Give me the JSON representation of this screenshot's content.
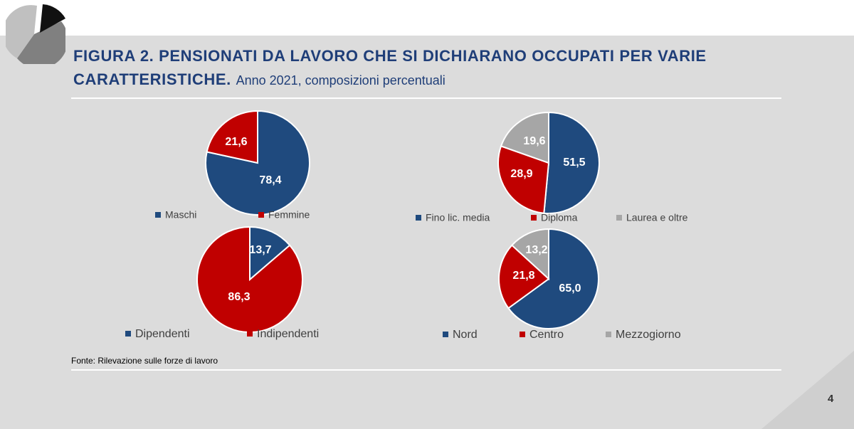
{
  "header": {
    "title_bold": "FIGURA 2. PENSIONATI DA LAVORO CHE SI DICHIARANO OCCUPATI PER VARIE",
    "title_bold_2": "CARATTERISTICHE.",
    "subtitle": "Anno 2021, composizioni percentuali"
  },
  "source": "Fonte: Rilevazione sulle forze di lavoro",
  "page_number": "4",
  "colors": {
    "blue": "#1f4a7e",
    "red": "#c00000",
    "grey": "#a6a6a6",
    "title": "#1f3e78"
  },
  "chart_data": [
    {
      "type": "pie",
      "categories": [
        "Maschi",
        "Femmine"
      ],
      "values": [
        78.4,
        21.6
      ],
      "labels": [
        "78,4",
        "21,6"
      ],
      "colors": [
        "#1f4a7e",
        "#c00000"
      ]
    },
    {
      "type": "pie",
      "categories": [
        "Fino lic. media",
        "Diploma",
        "Laurea e oltre"
      ],
      "values": [
        51.5,
        28.9,
        19.6
      ],
      "labels": [
        "51,5",
        "28,9",
        "19,6"
      ],
      "colors": [
        "#1f4a7e",
        "#c00000",
        "#a6a6a6"
      ]
    },
    {
      "type": "pie",
      "categories": [
        "Dipendenti",
        "Indipendenti"
      ],
      "values": [
        13.7,
        86.3
      ],
      "labels": [
        "13,7",
        "86,3"
      ],
      "colors": [
        "#1f4a7e",
        "#c00000"
      ]
    },
    {
      "type": "pie",
      "categories": [
        "Nord",
        "Centro",
        "Mezzogiorno"
      ],
      "values": [
        65.0,
        21.8,
        13.2
      ],
      "labels": [
        "65,0",
        "21,8",
        "13,2"
      ],
      "colors": [
        "#1f4a7e",
        "#c00000",
        "#a6a6a6"
      ]
    }
  ]
}
